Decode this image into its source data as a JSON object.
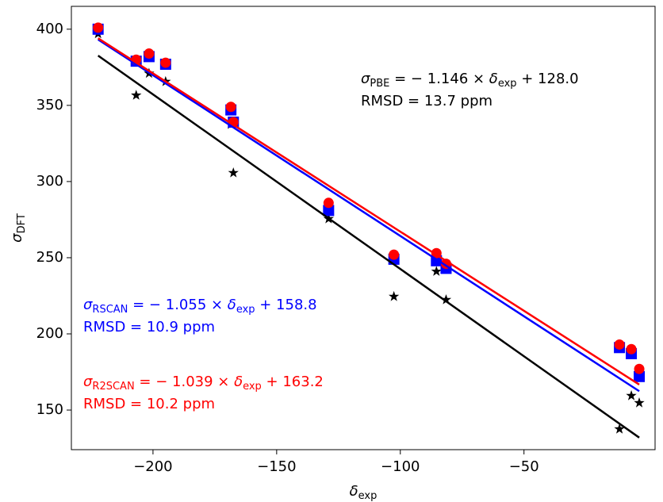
{
  "chart_data": {
    "type": "scatter",
    "xlabel": {
      "symbol": "δ",
      "sub": "exp"
    },
    "ylabel": {
      "symbol": "σ",
      "sub": "DFT"
    },
    "xlim": [
      -233,
      3
    ],
    "ylim": [
      124,
      415
    ],
    "xticks": [
      {
        "value": -200,
        "label": "−200"
      },
      {
        "value": -150,
        "label": "−150"
      },
      {
        "value": -100,
        "label": "−100"
      },
      {
        "value": -50,
        "label": "−50"
      }
    ],
    "yticks": [
      150,
      200,
      250,
      300,
      350,
      400
    ],
    "x": [
      -222.2,
      -206.8,
      -201.6,
      -194.9,
      -168.5,
      -167.5,
      -129,
      -102.6,
      -85.4,
      -81.5,
      -11.4,
      -6.6,
      -3.4
    ],
    "series": [
      {
        "name": "PBE",
        "color": "#000000",
        "marker": "star",
        "values": [
          397,
          356.6,
          371,
          365.6,
          337.5,
          305.7,
          275.5,
          224.5,
          241,
          222.4,
          137.5,
          159.4,
          154.7
        ],
        "fit": {
          "slope": -1.146,
          "intercept": 128.0
        },
        "equation": {
          "symbol": "σ",
          "sub": "PBE",
          "eq": " = − 1.146 × ",
          "var": "δ",
          "varsub": "exp",
          "rest": " + 128.0"
        },
        "rmsd": "RMSD = 13.7 ppm"
      },
      {
        "name": "RSCAN",
        "color": "#0000ff",
        "marker": "square",
        "values": [
          400,
          379,
          382,
          377,
          347,
          339,
          281,
          249,
          248,
          243,
          191,
          187,
          172
        ],
        "fit": {
          "slope": -1.055,
          "intercept": 158.8
        },
        "equation": {
          "symbol": "σ",
          "sub": "RSCAN",
          "eq": " = − 1.055 × ",
          "var": "δ",
          "varsub": "exp",
          "rest": " + 158.8"
        },
        "rmsd": "RMSD = 10.9 ppm"
      },
      {
        "name": "R2SCAN",
        "color": "#ff0000",
        "marker": "circle",
        "values": [
          401,
          380,
          384,
          378,
          349,
          339,
          286,
          252,
          253,
          246,
          193,
          190,
          177
        ],
        "fit": {
          "slope": -1.039,
          "intercept": 163.2
        },
        "equation": {
          "symbol": "σ",
          "sub": "R2SCAN",
          "eq": " = − 1.039 × ",
          "var": "δ",
          "varsub": "exp",
          "rest": " + 163.2"
        },
        "rmsd": "RMSD = 10.2 ppm"
      }
    ]
  }
}
